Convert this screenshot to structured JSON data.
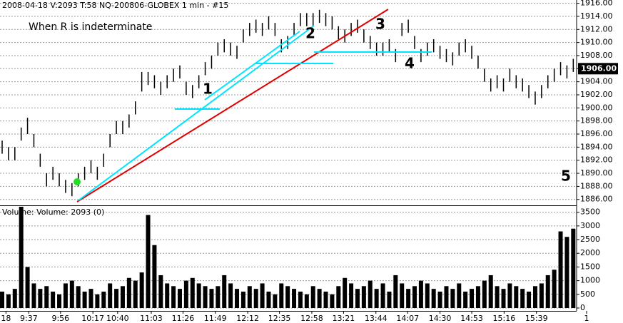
{
  "chart_data": [
    {
      "type": "range_bar",
      "title": "2008-04-18  V:2093   T:58  NQ-200806-GLOBEX  1 min  - #15",
      "annotations": [
        "When R is indeterminate",
        "1",
        "2",
        "3",
        "4",
        "5"
      ],
      "current_price": {
        "value": 1906,
        "label": "1906.00"
      },
      "color": "#000000",
      "grid": true,
      "xlim": [
        0,
        93
      ],
      "ylim": [
        1885.1,
        1916.5
      ],
      "yticks": [
        {
          "value": 1886,
          "label": "1886.00"
        },
        {
          "value": 1888,
          "label": "1888.00"
        },
        {
          "value": 1890,
          "label": "1890.00"
        },
        {
          "value": 1892,
          "label": "1892.00"
        },
        {
          "value": 1894,
          "label": "1894.00"
        },
        {
          "value": 1896,
          "label": "1896.00"
        },
        {
          "value": 1898,
          "label": "1898.00"
        },
        {
          "value": 1900,
          "label": "1900.00"
        },
        {
          "value": 1902,
          "label": "1902.00"
        },
        {
          "value": 1904,
          "label": "1904.00"
        },
        {
          "value": 1906,
          "label": "1906.00"
        },
        {
          "value": 1908,
          "label": "1908.00"
        },
        {
          "value": 1910,
          "label": "1910.00"
        },
        {
          "value": 1912,
          "label": "1912.00"
        },
        {
          "value": 1914,
          "label": "1914.00"
        },
        {
          "value": 1916,
          "label": "1916.00"
        }
      ],
      "high": [
        1895,
        1894,
        1894,
        1897,
        1898.5,
        1896,
        1893,
        1890,
        1891,
        1890,
        1889,
        1888.5,
        1890,
        1891,
        1892,
        1891,
        1893,
        1896,
        1898,
        1898,
        1899,
        1901,
        1905.5,
        1905.5,
        1905,
        1904,
        1905,
        1906,
        1906.5,
        1904,
        1903.5,
        1905,
        1907,
        1908,
        1910,
        1910.5,
        1910,
        1909.5,
        1912,
        1913,
        1913.5,
        1913,
        1914,
        1913,
        1910.5,
        1911,
        1913,
        1914.5,
        1914.5,
        1914.5,
        1915,
        1914.5,
        1914,
        1912.5,
        1912,
        1913,
        1913.5,
        1912,
        1911,
        1910,
        1910,
        1910.5,
        1909,
        1913,
        1913.5,
        1911,
        1909,
        1910,
        1910.5,
        1909.5,
        1909,
        1908.5,
        1910,
        1910.5,
        1909.5,
        1908,
        1906,
        1904.5,
        1905,
        1904.5,
        1906,
        1905,
        1904.5,
        1903.5,
        1902.5,
        1903.5,
        1905,
        1906,
        1907,
        1906.5,
        1907.5
      ],
      "low": [
        1893,
        1892,
        1892,
        1895,
        1896,
        1894,
        1891,
        1888,
        1889,
        1888,
        1887,
        1886.5,
        1888,
        1889,
        1890,
        1889,
        1891,
        1894,
        1896,
        1896,
        1897,
        1899,
        1902.5,
        1903.5,
        1903,
        1902,
        1903,
        1904,
        1904.5,
        1902,
        1901.5,
        1903,
        1905,
        1906,
        1908,
        1908.5,
        1908,
        1907.5,
        1910,
        1911,
        1911.5,
        1911,
        1912,
        1911,
        1908.5,
        1909,
        1911,
        1912.5,
        1912.5,
        1912.5,
        1913,
        1912.5,
        1912,
        1910.5,
        1910,
        1911,
        1911.5,
        1910,
        1909,
        1908,
        1908,
        1908.5,
        1907,
        1911,
        1911.5,
        1909,
        1907,
        1908,
        1908.5,
        1907.5,
        1907,
        1906.5,
        1908,
        1908.5,
        1907.5,
        1906,
        1904,
        1902.5,
        1903,
        1902.5,
        1904,
        1903,
        1902.5,
        1901.5,
        1900.5,
        1901.5,
        1903,
        1904,
        1905,
        1904.5,
        1905.5
      ]
    },
    {
      "type": "bar",
      "title": "Volume:  Volume: 2093  (0)",
      "color": "#000000",
      "grid": true,
      "xlim": [
        0,
        93
      ],
      "ylim": [
        0,
        3700
      ],
      "yticks": [
        0,
        500,
        1000,
        1500,
        2000,
        2500,
        3000,
        3500
      ],
      "xticks": [
        {
          "value": 0.6,
          "label": "18"
        },
        {
          "value": 4.2,
          "label": "9:37"
        },
        {
          "value": 9.2,
          "label": "9:56"
        },
        {
          "value": 14.3,
          "label": "10:17"
        },
        {
          "value": 18.2,
          "label": "10:40"
        },
        {
          "value": 23.5,
          "label": "11:03"
        },
        {
          "value": 28.5,
          "label": "11:26"
        },
        {
          "value": 33.6,
          "label": "11:49"
        },
        {
          "value": 38.7,
          "label": "12:12"
        },
        {
          "value": 43.7,
          "label": "12:35"
        },
        {
          "value": 48.8,
          "label": "12:58"
        },
        {
          "value": 53.8,
          "label": "13:21"
        },
        {
          "value": 58.9,
          "label": "13:44"
        },
        {
          "value": 63.9,
          "label": "14:07"
        },
        {
          "value": 69,
          "label": "14:30"
        },
        {
          "value": 74,
          "label": "14:53"
        },
        {
          "value": 79.1,
          "label": "15:16"
        },
        {
          "value": 84.2,
          "label": "15:39"
        },
        {
          "value": 92.1,
          "label": "1"
        }
      ],
      "values": [
        600,
        500,
        700,
        3800,
        1500,
        900,
        700,
        800,
        600,
        500,
        900,
        1000,
        800,
        600,
        700,
        500,
        600,
        900,
        700,
        800,
        1100,
        1000,
        1300,
        3400,
        2300,
        1200,
        900,
        800,
        700,
        1000,
        1100,
        900,
        800,
        700,
        800,
        1200,
        900,
        700,
        600,
        800,
        700,
        900,
        600,
        500,
        900,
        800,
        700,
        600,
        500,
        800,
        700,
        600,
        500,
        800,
        1100,
        900,
        700,
        800,
        1000,
        700,
        900,
        600,
        1200,
        900,
        700,
        800,
        1000,
        900,
        700,
        600,
        800,
        700,
        900,
        600,
        700,
        800,
        1000,
        1200,
        800,
        700,
        900,
        800,
        700,
        600,
        800,
        900,
        1200,
        1400,
        2800,
        2600,
        2900
      ]
    }
  ]
}
